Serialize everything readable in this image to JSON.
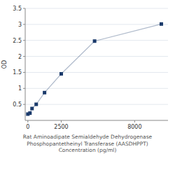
{
  "chart_data": {
    "type": "line",
    "x": [
      0,
      156.25,
      312.5,
      625,
      1250,
      2500,
      5000,
      10000
    ],
    "values": [
      0.197,
      0.228,
      0.371,
      0.503,
      0.868,
      1.455,
      2.478,
      3.012
    ],
    "color": "#1a3a6b",
    "marker": "square",
    "x_label": "Rat Aminoadipate Semialdehyde Dehydrogenase Phosphopantetheinyl Transferase (AASDHPPT)\nConcentration (pg/ml)",
    "y_label": "OD",
    "xlim": [
      -200,
      10500
    ],
    "ylim": [
      0,
      3.5
    ],
    "xticks": [
      0,
      2500,
      8000
    ],
    "yticks": [
      0.5,
      1,
      1.5,
      2,
      2.5,
      3,
      3.5
    ],
    "grid": true
  }
}
